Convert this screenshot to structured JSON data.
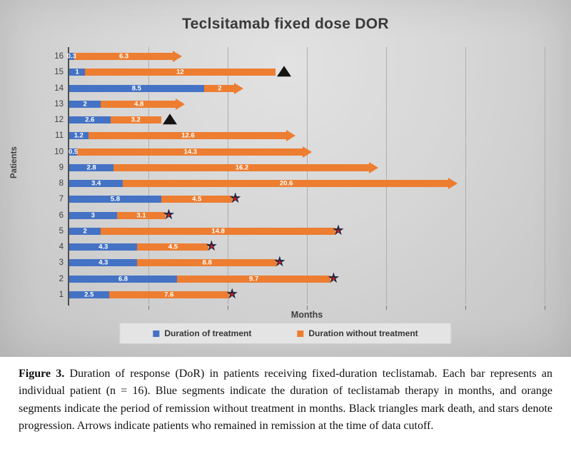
{
  "chart_data": {
    "type": "bar",
    "orientation": "horizontal-stacked",
    "title": "Teclsitamab fixed dose DOR",
    "xlabel": "Months",
    "ylabel": "Patients",
    "xlim": [
      0,
      30
    ],
    "grid": true,
    "grid_step": 5,
    "legend_position": "bottom",
    "categories": [
      "16",
      "15",
      "14",
      "13",
      "12",
      "11",
      "10",
      "9",
      "8",
      "7",
      "6",
      "5",
      "4",
      "3",
      "2",
      "1"
    ],
    "series": [
      {
        "name": "Duration of treatment",
        "color": "#4472c4",
        "values": [
          0.3,
          1,
          8.5,
          2,
          2.6,
          1.2,
          0.5,
          2.8,
          3.4,
          5.8,
          3,
          2,
          4.3,
          4.3,
          6.8,
          2.5
        ]
      },
      {
        "name": "Duration without treatment",
        "color": "#ed7d31",
        "values": [
          6.3,
          12,
          2,
          4.8,
          3.2,
          12.6,
          14.3,
          16.2,
          20.6,
          4.5,
          3.1,
          14.8,
          4.5,
          8.8,
          9.7,
          7.6
        ]
      }
    ],
    "end_markers": [
      "arrow",
      "triangle",
      "arrow",
      "arrow",
      "triangle",
      "arrow",
      "arrow",
      "arrow",
      "arrow",
      "star",
      "star",
      "star",
      "star",
      "star",
      "star",
      "star"
    ],
    "marker_meanings": {
      "arrow": "remained in remission at time of data cutoff",
      "triangle": "death",
      "star": "progression"
    },
    "colors": {
      "treatment_blue": "#4472c4",
      "remission_orange": "#ed7d31",
      "marker_black": "#141414",
      "star_red": "#cf1e1e",
      "star_outline": "#1b2440"
    }
  },
  "figure": {
    "caption_label": "Figure 3.",
    "caption_text": " Duration of response (DoR) in patients receiving fixed-duration teclistamab. Each bar represents an individual patient (n = 16). Blue segments indicate the duration of teclistamab therapy in months, and orange segments indicate the period of remission without treatment in months. Black triangles mark death, and stars denote progression. Arrows indicate patients who remained in remission at the time of data cutoff."
  }
}
